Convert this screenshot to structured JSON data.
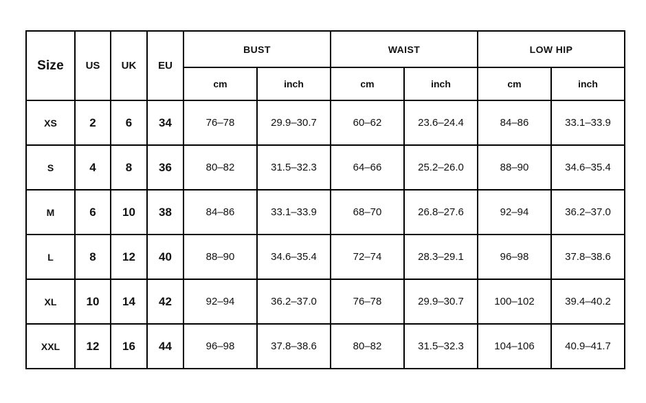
{
  "chart_data": {
    "type": "table",
    "header": {
      "size": "Size",
      "us": "US",
      "uk": "UK",
      "eu": "EU",
      "bust": "BUST",
      "waist": "WAIST",
      "low_hip": "LOW HIP",
      "cm": "cm",
      "inch": "inch"
    },
    "rows": [
      {
        "size": "XS",
        "us": "2",
        "uk": "6",
        "eu": "34",
        "bust_cm": "76–78",
        "bust_inch": "29.9–30.7",
        "waist_cm": "60–62",
        "waist_inch": "23.6–24.4",
        "hip_cm": "84–86",
        "hip_inch": "33.1–33.9"
      },
      {
        "size": "S",
        "us": "4",
        "uk": "8",
        "eu": "36",
        "bust_cm": "80–82",
        "bust_inch": "31.5–32.3",
        "waist_cm": "64–66",
        "waist_inch": "25.2–26.0",
        "hip_cm": "88–90",
        "hip_inch": "34.6–35.4"
      },
      {
        "size": "M",
        "us": "6",
        "uk": "10",
        "eu": "38",
        "bust_cm": "84–86",
        "bust_inch": "33.1–33.9",
        "waist_cm": "68–70",
        "waist_inch": "26.8–27.6",
        "hip_cm": "92–94",
        "hip_inch": "36.2–37.0"
      },
      {
        "size": "L",
        "us": "8",
        "uk": "12",
        "eu": "40",
        "bust_cm": "88–90",
        "bust_inch": "34.6–35.4",
        "waist_cm": "72–74",
        "waist_inch": "28.3–29.1",
        "hip_cm": "96–98",
        "hip_inch": "37.8–38.6"
      },
      {
        "size": "XL",
        "us": "10",
        "uk": "14",
        "eu": "42",
        "bust_cm": "92–94",
        "bust_inch": "36.2–37.0",
        "waist_cm": "76–78",
        "waist_inch": "29.9–30.7",
        "hip_cm": "100–102",
        "hip_inch": "39.4–40.2"
      },
      {
        "size": "XXL",
        "us": "12",
        "uk": "16",
        "eu": "44",
        "bust_cm": "96–98",
        "bust_inch": "37.8–38.6",
        "waist_cm": "80–82",
        "waist_inch": "31.5–32.3",
        "hip_cm": "104–106",
        "hip_inch": "40.9–41.7"
      }
    ],
    "colors": {
      "border": "#000000",
      "text": "#111111",
      "background": "#ffffff"
    }
  }
}
